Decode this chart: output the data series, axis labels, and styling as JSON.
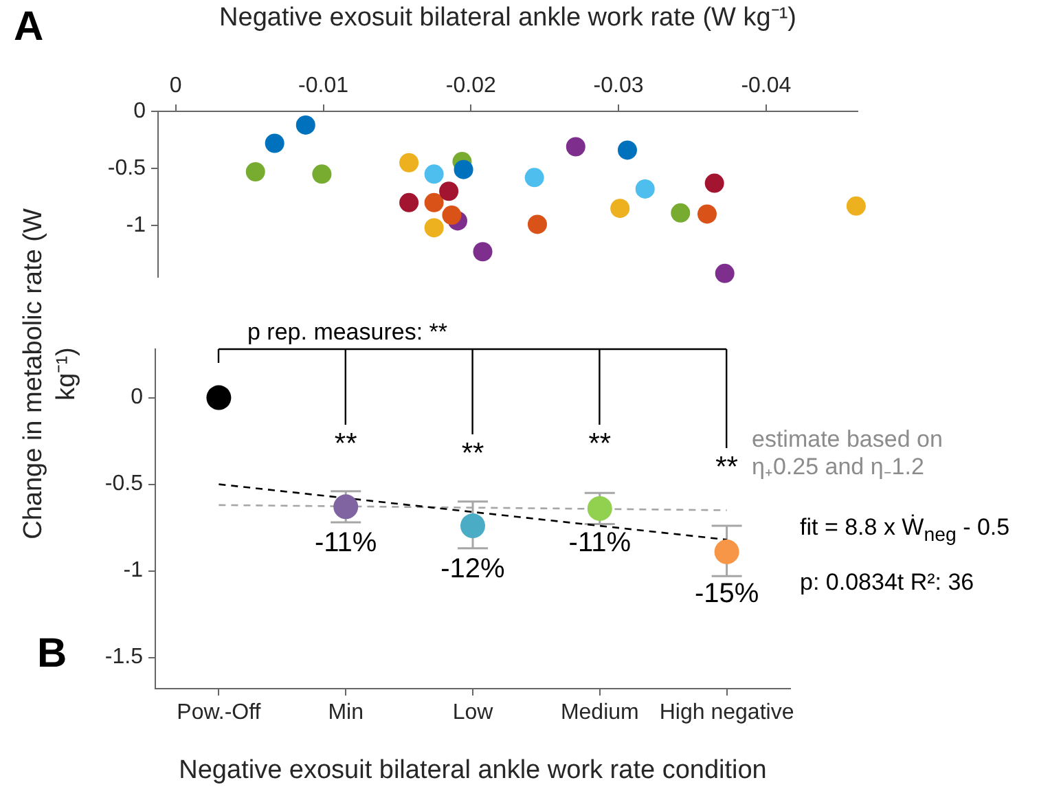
{
  "chart_data": [
    {
      "type": "scatter",
      "xlabel": "Negative exosuit bilateral ankle work rate (W kg⁻¹)",
      "ylabel": "Change in metabolic rate (W kg⁻¹)",
      "xlim": [
        0.0012,
        -0.0462
      ],
      "xticks": [
        0,
        -0.01,
        -0.02,
        -0.03,
        -0.04
      ],
      "ylim": [
        -1.45,
        0
      ],
      "yticks": [
        0,
        -0.5,
        -1
      ],
      "annotations": [
        "A"
      ],
      "series": [
        {
          "color": "#0072bd",
          "x": [
            -0.0067,
            -0.0088,
            -0.0195,
            -0.0306
          ],
          "values": [
            -0.28,
            -0.12,
            -0.51,
            -0.34
          ]
        },
        {
          "color": "#77ac30",
          "x": [
            -0.0054,
            -0.0099,
            -0.0194,
            -0.0342
          ],
          "values": [
            -0.53,
            -0.55,
            -0.44,
            -0.89
          ]
        },
        {
          "color": "#edb120",
          "x": [
            -0.0158,
            -0.0175,
            -0.0301,
            -0.0461
          ],
          "values": [
            -0.45,
            -1.02,
            -0.85,
            -0.83
          ]
        },
        {
          "color": "#4dbeee",
          "x": [
            -0.0175,
            -0.0243,
            -0.0318
          ],
          "values": [
            -0.55,
            -0.58,
            -0.68
          ]
        },
        {
          "color": "#a2142f",
          "x": [
            -0.0158,
            -0.0185,
            -0.0365
          ],
          "values": [
            -0.8,
            -0.7,
            -0.63
          ]
        },
        {
          "color": "#d95319",
          "x": [
            -0.0175,
            -0.0187,
            -0.0245,
            -0.036
          ],
          "values": [
            -0.8,
            -0.91,
            -0.99,
            -0.9
          ]
        },
        {
          "color": "#7e2f8e",
          "x": [
            -0.0271,
            -0.0191,
            -0.0208,
            -0.0372
          ],
          "values": [
            -0.31,
            -0.96,
            -1.23,
            -1.42
          ]
        }
      ]
    },
    {
      "type": "scatter",
      "xlabel": "Negative exosuit bilateral ankle work rate condition",
      "categories": [
        "Pow.-Off",
        "Min",
        "Low",
        "Medium",
        "High negative"
      ],
      "ylim": [
        -1.68,
        0.28
      ],
      "yticks": [
        0,
        -0.5,
        -1,
        -1.5
      ],
      "series": [
        {
          "values": [
            0,
            -0.63,
            -0.74,
            -0.64,
            -0.89
          ],
          "colors": [
            "#000000",
            "#8064a2",
            "#4bacc6",
            "#92d050",
            "#f79646"
          ],
          "errors": [
            null,
            [
              -0.72,
              -0.54
            ],
            [
              -0.87,
              -0.6
            ],
            [
              -0.73,
              -0.55
            ],
            [
              -1.03,
              -0.74
            ]
          ]
        },
        {
          "type": "line",
          "color": "#000000",
          "line_style": "dashed",
          "marker": "none",
          "values": [
            -0.5,
            null,
            null,
            null,
            -0.82
          ]
        },
        {
          "type": "line",
          "color": "#a6a6a6",
          "line_style": "dashed",
          "marker": "none",
          "values": [
            -0.62,
            null,
            null,
            null,
            -0.65
          ]
        }
      ],
      "annotations": [
        "p rep. measures: **",
        "**",
        "**",
        "**",
        "**",
        "-11%",
        "-12%",
        "-11%",
        "-15%",
        "estimate based on η₊0.25 and η₋1.2",
        "fit = 8.8 x Ẇ$_{neg}$ - 0.5",
        "p: 0.0834t R²: 36",
        "B"
      ]
    }
  ]
}
